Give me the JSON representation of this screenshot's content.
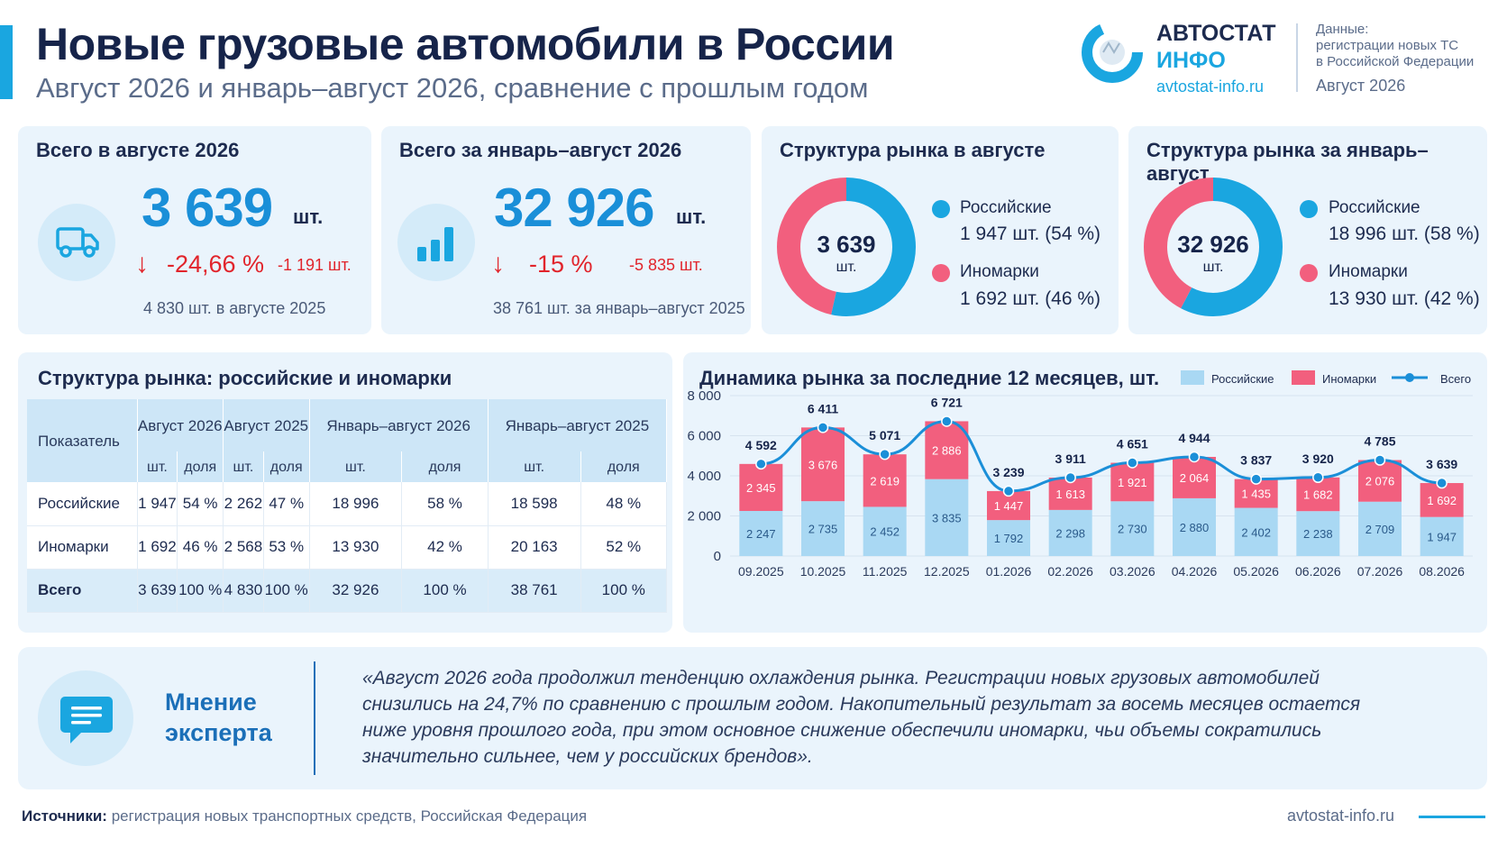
{
  "header": {
    "title": "Новые грузовые автомобили в России",
    "subtitle": "Август 2026 и январь–август 2026, сравнение с прошлым годом",
    "logo_line1": "АВТОСТАТ",
    "logo_line2": "ИНФО",
    "logo_url": "avtostat-info.ru",
    "data_label": "Данные:",
    "data_text1": "регистрации новых ТС",
    "data_text2": "в Российской Федерации",
    "data_month": "Август 2026"
  },
  "kpi_month": {
    "title": "Всего в августе 2026",
    "value": "3 639",
    "unit": "шт.",
    "arrow": "↓",
    "change_pct": "-24,66 %",
    "change_abs": "-1 191 шт.",
    "prev": "4 830 шт. в августе 2025",
    "icon": "truck-icon"
  },
  "kpi_ytd": {
    "title": "Всего за январь–август 2026",
    "value": "32 926",
    "unit": "шт.",
    "arrow": "↓",
    "change_pct": "-15 %",
    "change_abs": "-5 835 шт.",
    "prev": "38 761 шт. за январь–август 2025",
    "icon": "bar-chart-icon"
  },
  "structure_month": {
    "title": "Структура рынка в августе",
    "center_value": "3 639",
    "center_unit": "шт.",
    "russian_label": "Российские",
    "russian_value": "1 947 шт. (54 %)",
    "foreign_label": "Иномарки",
    "foreign_value": "1 692 шт. (46 %)"
  },
  "structure_ytd": {
    "title": "Структура рынка за январь–август",
    "center_value": "32 926",
    "center_unit": "шт.",
    "russian_label": "Российские",
    "russian_value": "18 996 шт. (58 %)",
    "foreign_label": "Иномарки",
    "foreign_value": "13 930 шт. (42 %)"
  },
  "table": {
    "title": "Структура рынка: российские и иномарки",
    "col_indicator": "Показатель",
    "periods": [
      "Август 2026",
      "Август 2025",
      "Январь–август 2026",
      "Январь–август 2025"
    ],
    "sub_units": "шт.",
    "sub_share": "доля",
    "rows": [
      {
        "label": "Российские",
        "cells": [
          "1 947",
          "54 %",
          "2 262",
          "47 %",
          "18 996",
          "58 %",
          "18 598",
          "48 %"
        ]
      },
      {
        "label": "Иномарки",
        "cells": [
          "1 692",
          "46 %",
          "2 568",
          "53 %",
          "13 930",
          "42 %",
          "20 163",
          "52 %"
        ]
      },
      {
        "label": "Всего",
        "cells": [
          "3 639",
          "100 %",
          "4 830",
          "100 %",
          "32 926",
          "100 %",
          "38 761",
          "100 %"
        ]
      }
    ]
  },
  "dynamics": {
    "title": "Динамика рынка за последние 12 месяцев, шт.",
    "legend_russian": "Российские",
    "legend_foreign": "Иномарки",
    "legend_total": "Всего"
  },
  "colors": {
    "russian": "#1aa6e0",
    "russian_bar": "#a9d8f3",
    "foreign": "#f25f7e",
    "total_line": "#1b8fd8",
    "negative": "#e1242b"
  },
  "chart_data": [
    {
      "type": "pie",
      "title": "Структура рынка в августе",
      "labels": [
        "Российские",
        "Иномарки"
      ],
      "values": [
        1947,
        1692
      ],
      "shares": [
        54,
        46
      ]
    },
    {
      "type": "pie",
      "title": "Структура рынка за январь–август",
      "labels": [
        "Российские",
        "Иномарки"
      ],
      "values": [
        18996,
        13930
      ],
      "shares": [
        58,
        42
      ]
    },
    {
      "type": "bar",
      "stacked": true,
      "title": "Динамика рынка за последние 12 месяцев, шт.",
      "categories": [
        "09.2025",
        "10.2025",
        "11.2025",
        "12.2025",
        "01.2026",
        "02.2026",
        "03.2026",
        "04.2026",
        "05.2026",
        "06.2026",
        "07.2026",
        "08.2026"
      ],
      "series": [
        {
          "name": "Российские",
          "values": [
            2247,
            2735,
            2452,
            3835,
            1792,
            2298,
            2730,
            2880,
            2402,
            2238,
            2709,
            1947
          ]
        },
        {
          "name": "Иномарки",
          "values": [
            2345,
            3676,
            2619,
            2886,
            1447,
            1613,
            1921,
            2064,
            1435,
            1682,
            2076,
            1692
          ]
        },
        {
          "name": "Всего",
          "type": "line",
          "values": [
            4592,
            6411,
            5071,
            6721,
            3239,
            3911,
            4651,
            4944,
            3837,
            3920,
            4785,
            3639
          ]
        }
      ],
      "total_labels": [
        "4 592",
        "6 411",
        "5 071",
        "6 721",
        "3 239",
        "3 911",
        "4 651",
        "4 944",
        "3 837",
        "3 920",
        "4 785",
        "3 639"
      ],
      "russian_labels": [
        "2 247",
        "2 735",
        "2 452",
        "3 835",
        "1 792",
        "2 298",
        "2 730",
        "2 880",
        "2 402",
        "2 238",
        "2 709",
        "1 947"
      ],
      "foreign_labels": [
        "2 345",
        "3 676",
        "2 619",
        "2 886",
        "1 447",
        "1 613",
        "1 921",
        "2 064",
        "1 435",
        "1 682",
        "2 076",
        "1 692"
      ],
      "ylim": [
        0,
        8000
      ],
      "yticks": [
        "0",
        "2 000",
        "4 000",
        "6 000",
        "8 000"
      ],
      "ytick_values": [
        0,
        2000,
        4000,
        6000,
        8000
      ],
      "legend": "top-right",
      "grid": true
    }
  ],
  "expert": {
    "label_line1": "Мнение",
    "label_line2": "эксперта",
    "icon": "chat-icon",
    "quote": "«Август 2026 года продолжил тенденцию охлаждения рынка. Регистрации новых грузовых автомобилей снизились на 24,7% по сравнению с прошлым годом. Накопительный результат за восемь месяцев остается ниже уровня прошлого года, при этом основное снижение обеспечили иномарки, чьи объемы сократились значительно сильнее, чем у российских брендов»."
  },
  "footer": {
    "source_label": "Источники:",
    "source_text": "регистрация новых транспортных средств, Российская Федерация",
    "url": "avtostat-info.ru"
  }
}
